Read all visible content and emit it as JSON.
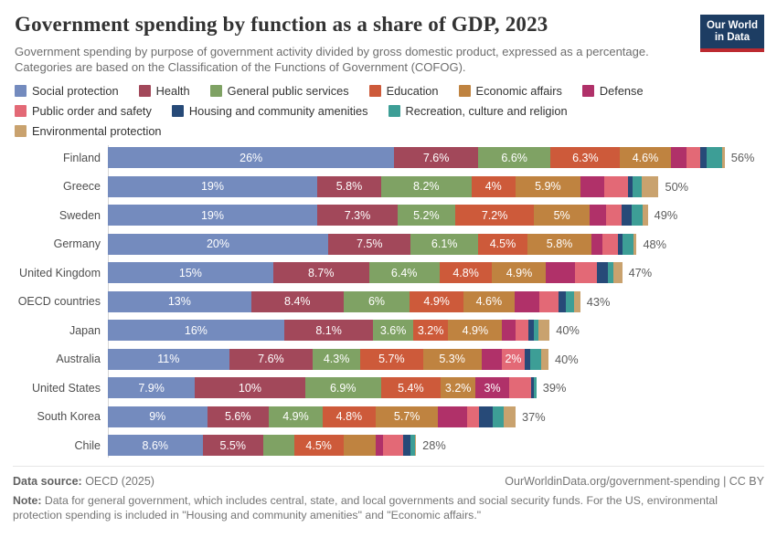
{
  "header": {
    "title": "Government spending by function as a share of GDP, 2023",
    "subtitle": "Government spending by purpose of government activity divided by gross domestic product, expressed as a percentage. Categories are based on the Classification of the Functions of Government (COFOG).",
    "logo": {
      "line1": "Our World",
      "line2": "in Data"
    }
  },
  "categories": [
    {
      "name": "Social protection",
      "color": "#748BBE"
    },
    {
      "name": "Health",
      "color": "#A2485A"
    },
    {
      "name": "General public services",
      "color": "#7FA264"
    },
    {
      "name": "Education",
      "color": "#CD5A3A"
    },
    {
      "name": "Economic affairs",
      "color": "#BF8340"
    },
    {
      "name": "Defense",
      "color": "#B03169"
    },
    {
      "name": "Public order and safety",
      "color": "#E36976"
    },
    {
      "name": "Housing and community amenities",
      "color": "#274A78"
    },
    {
      "name": "Recreation, culture and religion",
      "color": "#3D9E96"
    },
    {
      "name": "Environmental protection",
      "color": "#C9A26E"
    }
  ],
  "legend": {
    "rows": [
      [
        0,
        1,
        2,
        3,
        4,
        5
      ],
      [
        6,
        7,
        8
      ],
      [
        9
      ]
    ]
  },
  "chart_data": {
    "type": "bar",
    "stacked": true,
    "orientation": "horizontal",
    "unit": "% of GDP",
    "xlim": [
      0,
      56
    ],
    "category_names": [
      "Social protection",
      "Health",
      "General public services",
      "Education",
      "Economic affairs",
      "Defense",
      "Public order and safety",
      "Housing and community amenities",
      "Recreation, culture and religion",
      "Environmental protection"
    ],
    "rows": [
      {
        "country": "Finland",
        "total": 56,
        "total_label": "56%",
        "values": [
          26,
          7.6,
          6.6,
          6.3,
          4.6,
          1.4,
          1.3,
          0.6,
          1.4,
          0.2
        ],
        "labels": [
          "26%",
          "7.6%",
          "6.6%",
          "6.3%",
          "4.6%",
          "",
          "",
          "",
          "",
          ""
        ]
      },
      {
        "country": "Greece",
        "total": 50,
        "total_label": "50%",
        "values": [
          19,
          5.8,
          8.2,
          4,
          5.9,
          2.2,
          2.1,
          0.4,
          0.9,
          1.5
        ],
        "labels": [
          "19%",
          "5.8%",
          "8.2%",
          "4%",
          "5.9%",
          "",
          "",
          "",
          "",
          ""
        ]
      },
      {
        "country": "Sweden",
        "total": 49,
        "total_label": "49%",
        "values": [
          19,
          7.3,
          5.2,
          7.2,
          5,
          1.5,
          1.4,
          0.9,
          1.0,
          0.5
        ],
        "labels": [
          "19%",
          "7.3%",
          "5.2%",
          "7.2%",
          "5%",
          "",
          "",
          "",
          "",
          ""
        ]
      },
      {
        "country": "Germany",
        "total": 48,
        "total_label": "48%",
        "values": [
          20,
          7.5,
          6.1,
          4.5,
          5.8,
          1.0,
          1.4,
          0.4,
          1.0,
          0.3
        ],
        "labels": [
          "20%",
          "7.5%",
          "6.1%",
          "4.5%",
          "5.8%",
          "",
          "",
          "",
          "",
          ""
        ]
      },
      {
        "country": "United Kingdom",
        "total": 47,
        "total_label": "47%",
        "values": [
          15,
          8.7,
          6.4,
          4.8,
          4.9,
          2.6,
          2.0,
          1.0,
          0.5,
          0.8
        ],
        "labels": [
          "15%",
          "8.7%",
          "6.4%",
          "4.8%",
          "4.9%",
          "",
          "",
          "",
          "",
          ""
        ]
      },
      {
        "country": "OECD countries",
        "total": 43,
        "total_label": "43%",
        "values": [
          13,
          8.4,
          6,
          4.9,
          4.6,
          2.3,
          1.7,
          0.7,
          0.7,
          0.6
        ],
        "labels": [
          "13%",
          "8.4%",
          "6%",
          "4.9%",
          "4.6%",
          "",
          "",
          "",
          "",
          ""
        ]
      },
      {
        "country": "Japan",
        "total": 40,
        "total_label": "40%",
        "values": [
          16,
          8.1,
          3.6,
          3.2,
          4.9,
          1.2,
          1.2,
          0.5,
          0.4,
          1.0
        ],
        "labels": [
          "16%",
          "8.1%",
          "3.6%",
          "3.2%",
          "4.9%",
          "",
          "",
          "",
          "",
          ""
        ]
      },
      {
        "country": "Australia",
        "total": 40,
        "total_label": "40%",
        "values": [
          11,
          7.6,
          4.3,
          5.7,
          5.3,
          1.9,
          2.0,
          0.5,
          1.0,
          0.7
        ],
        "labels": [
          "11%",
          "7.6%",
          "4.3%",
          "5.7%",
          "5.3%",
          "",
          "2%",
          "",
          "",
          ""
        ]
      },
      {
        "country": "United States",
        "total": 39,
        "total_label": "39%",
        "values": [
          7.9,
          10,
          6.9,
          5.4,
          3.2,
          3.0,
          2.0,
          0.3,
          0.2,
          0
        ],
        "labels": [
          "7.9%",
          "10%",
          "6.9%",
          "5.4%",
          "3.2%",
          "3%",
          "",
          "",
          "",
          ""
        ]
      },
      {
        "country": "South Korea",
        "total": 37,
        "total_label": "37%",
        "values": [
          9,
          5.6,
          4.9,
          4.8,
          5.7,
          2.6,
          1.1,
          1.2,
          1.0,
          1.1
        ],
        "labels": [
          "9%",
          "5.6%",
          "4.9%",
          "4.8%",
          "5.7%",
          "",
          "",
          "",
          "",
          ""
        ]
      },
      {
        "country": "Chile",
        "total": 28,
        "total_label": "28%",
        "values": [
          8.6,
          5.5,
          2.8,
          4.5,
          2.9,
          0.7,
          1.8,
          0.7,
          0.4,
          0.1
        ],
        "labels": [
          "8.6%",
          "5.5%",
          "",
          "4.5%",
          "",
          "",
          "",
          "",
          "",
          ""
        ]
      }
    ]
  },
  "footer": {
    "source_label": "Data source:",
    "source_value": " OECD (2025)",
    "credit": "OurWorldinData.org/government-spending | CC BY",
    "note_label": "Note:",
    "note_value": " Data for general government, which includes central, state, and local governments and social security funds. For the US, environmental protection spending is included in \"Housing and community amenities\" and \"Economic affairs.\""
  }
}
